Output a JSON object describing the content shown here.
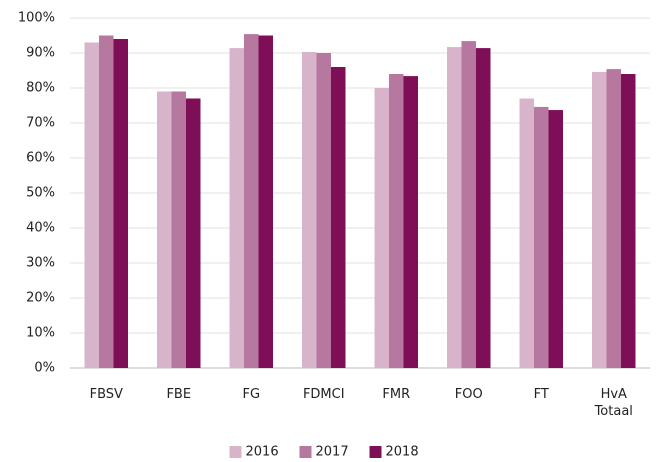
{
  "chart_data": {
    "type": "bar",
    "categories": [
      "FBSV",
      "FBE",
      "FG",
      "FDMCI",
      "FMR",
      "FOO",
      "FT",
      "HvA Totaal"
    ],
    "series": [
      {
        "name": "2016",
        "color": "#d8b4cb",
        "values": [
          93,
          79,
          91.4,
          90.3,
          80,
          91.7,
          77,
          84.6
        ]
      },
      {
        "name": "2017",
        "color": "#b7789f",
        "values": [
          95,
          79,
          95.4,
          90,
          84,
          93.4,
          74.6,
          85.4
        ]
      },
      {
        "name": "2018",
        "color": "#7e0f57",
        "values": [
          94,
          77,
          95,
          86,
          83.4,
          91.4,
          73.7,
          84
        ]
      }
    ],
    "ylim": [
      0,
      100
    ],
    "yticks": [
      {
        "value": 0,
        "label": "0%"
      },
      {
        "value": 10,
        "label": "10%"
      },
      {
        "value": 20,
        "label": "20%"
      },
      {
        "value": 30,
        "label": "30%"
      },
      {
        "value": 40,
        "label": "40%"
      },
      {
        "value": 50,
        "label": "50%"
      },
      {
        "value": 60,
        "label": "60%"
      },
      {
        "value": 70,
        "label": "70%"
      },
      {
        "value": 80,
        "label": "80%"
      },
      {
        "value": 90,
        "label": "90%"
      },
      {
        "value": 100,
        "label": "100%"
      }
    ],
    "grid": true,
    "legend": "bottom"
  }
}
